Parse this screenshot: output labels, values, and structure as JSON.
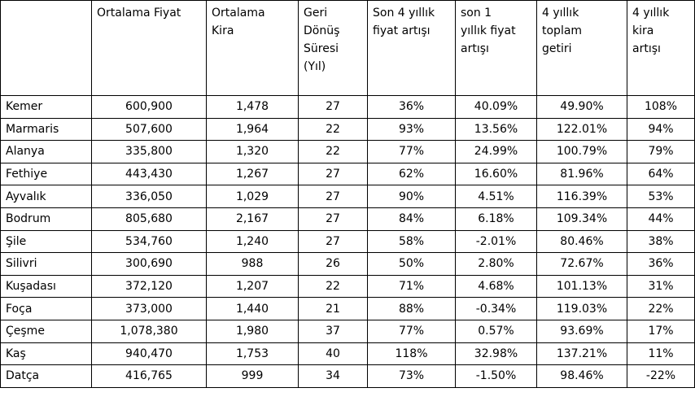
{
  "table": {
    "headers": [
      "",
      "Ortalama Fiyat",
      "Ortalama\nKira",
      "Geri\nDönüş\nSüresi\n(Yıl)",
      "Son 4 yıllık\nfiyat artışı",
      "son 1\nyıllık fiyat\nartışı",
      "4 yıllık\ntoplam\ngetiri",
      "4 yıllık\nkira\nartışı"
    ],
    "rows": [
      [
        "Kemer",
        "600,900",
        "1,478",
        "27",
        "36%",
        "40.09%",
        "49.90%",
        "108%"
      ],
      [
        "Marmaris",
        "507,600",
        "1,964",
        "22",
        "93%",
        "13.56%",
        "122.01%",
        "94%"
      ],
      [
        "Alanya",
        "335,800",
        "1,320",
        "22",
        "77%",
        "24.99%",
        "100.79%",
        "79%"
      ],
      [
        "Fethiye",
        "443,430",
        "1,267",
        "27",
        "62%",
        "16.60%",
        "81.96%",
        "64%"
      ],
      [
        "Ayvalık",
        "336,050",
        "1,029",
        "27",
        "90%",
        "4.51%",
        "116.39%",
        "53%"
      ],
      [
        "Bodrum",
        "805,680",
        "2,167",
        "27",
        "84%",
        "6.18%",
        "109.34%",
        "44%"
      ],
      [
        "Şile",
        "534,760",
        "1,240",
        "27",
        "58%",
        "-2.01%",
        "80.46%",
        "38%"
      ],
      [
        "Silivri",
        "300,690",
        "988",
        "26",
        "50%",
        "2.80%",
        "72.67%",
        "36%"
      ],
      [
        "Kuşadası",
        "372,120",
        "1,207",
        "22",
        "71%",
        "4.68%",
        "101.13%",
        "31%"
      ],
      [
        "Foça",
        "373,000",
        "1,440",
        "21",
        "88%",
        "-0.34%",
        "119.03%",
        "22%"
      ],
      [
        "Çeşme",
        "1,078,380",
        "1,980",
        "37",
        "77%",
        "0.57%",
        "93.69%",
        "17%"
      ],
      [
        "Kaş",
        "940,470",
        "1,753",
        "40",
        "118%",
        "32.98%",
        "137.21%",
        "11%"
      ],
      [
        "Datça",
        "416,765",
        "999",
        "34",
        "73%",
        "-1.50%",
        "98.46%",
        "-22%"
      ]
    ]
  }
}
